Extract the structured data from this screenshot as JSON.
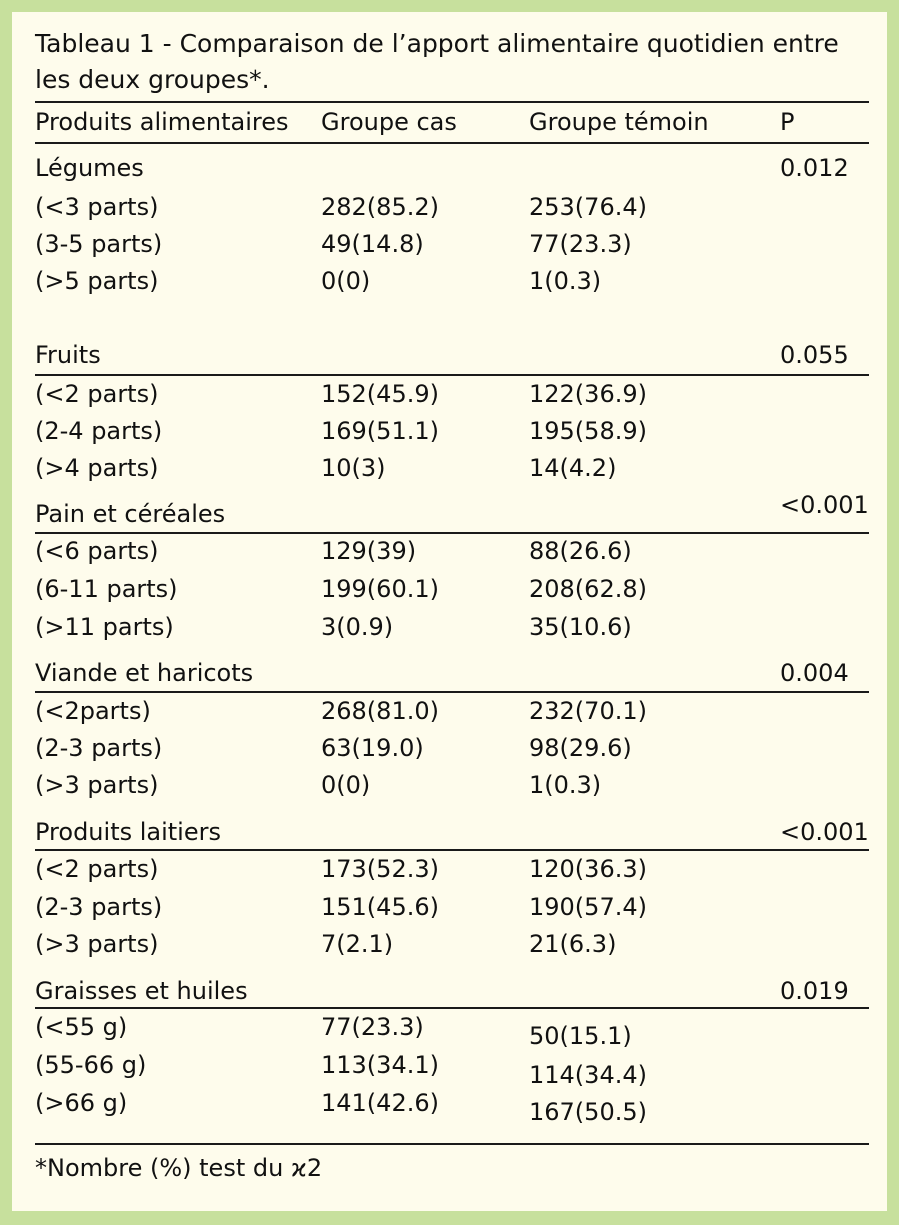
{
  "title": "Tableau 1 - Comparaison de l’apport alimentaire quotidien entre les deux groupes*.",
  "header": {
    "col1": "Produits alimentaires",
    "col2": "Groupe cas",
    "col3": "Groupe témoin",
    "col4": "P"
  },
  "groups": [
    {
      "name": "Légumes",
      "p": "0.012",
      "rows": [
        {
          "label": "(<3 parts)",
          "cas": "282(85.2)",
          "temoin": "253(76.4)"
        },
        {
          "label": "(3-5 parts)",
          "cas": "49(14.8)",
          "temoin": "77(23.3)"
        },
        {
          "label": "(>5 parts)",
          "cas": "0(0)",
          "temoin": "1(0.3)"
        }
      ]
    },
    {
      "name": "Fruits",
      "p": "0.055",
      "rows": [
        {
          "label": "(<2 parts)",
          "cas": "152(45.9)",
          "temoin": "122(36.9)"
        },
        {
          "label": "(2-4 parts)",
          "cas": "169(51.1)",
          "temoin": "195(58.9)"
        },
        {
          "label": "(>4 parts)",
          "cas": "10(3)",
          "temoin": "14(4.2)"
        }
      ]
    },
    {
      "name": "Pain et céréales",
      "p": "<0.001",
      "rows": [
        {
          "label": "(<6 parts)",
          "cas": "129(39)",
          "temoin": "88(26.6)"
        },
        {
          "label": "(6-11 parts)",
          "cas": "199(60.1)",
          "temoin": "208(62.8)"
        },
        {
          "label": "(>11 parts)",
          "cas": "3(0.9)",
          "temoin": "35(10.6)"
        }
      ]
    },
    {
      "name": "Viande et haricots",
      "p": "0.004",
      "rows": [
        {
          "label": "(<2parts)",
          "cas": "268(81.0)",
          "temoin": "232(70.1)"
        },
        {
          "label": "(2-3 parts)",
          "cas": "63(19.0)",
          "temoin": "98(29.6)"
        },
        {
          "label": "(>3 parts)",
          "cas": "0(0)",
          "temoin": "1(0.3)"
        }
      ]
    },
    {
      "name": "Produits laitiers",
      "p": "<0.001",
      "rows": [
        {
          "label": "(<2 parts)",
          "cas": "173(52.3)",
          "temoin": "120(36.3)"
        },
        {
          "label": "(2-3 parts)",
          "cas": "151(45.6)",
          "temoin": "190(57.4)"
        },
        {
          "label": "(>3 parts)",
          "cas": "7(2.1)",
          "temoin": "21(6.3)"
        }
      ]
    },
    {
      "name": "Graisses et huiles",
      "p": "0.019",
      "rows": [
        {
          "label": "(<55 g)",
          "cas": "77(23.3)",
          "temoin": "50(15.1)"
        },
        {
          "label": "(55-66 g)",
          "cas": "113(34.1)",
          "temoin": "114(34.4)"
        },
        {
          "label": "(>66 g)",
          "cas": "141(42.6)",
          "temoin": "167(50.5)"
        }
      ]
    }
  ],
  "footnote": "*Nombre (%) test du ϰ2"
}
